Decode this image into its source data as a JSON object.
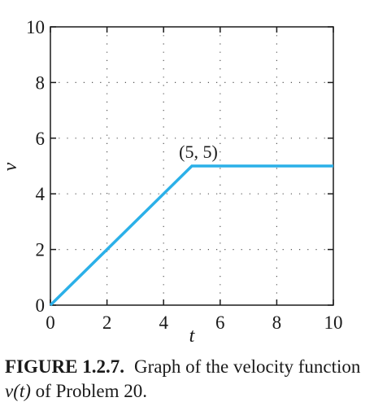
{
  "chart_data": {
    "type": "line",
    "xlabel": "t",
    "ylabel": "v",
    "xlim": [
      0,
      10
    ],
    "ylim": [
      0,
      10
    ],
    "xticks": [
      "0",
      "2",
      "4",
      "6",
      "8",
      "10"
    ],
    "yticks": [
      "0",
      "2",
      "4",
      "6",
      "8",
      "10"
    ],
    "grid": "dotted",
    "series": [
      {
        "x": [
          0,
          5,
          10
        ],
        "y": [
          0,
          5,
          5
        ],
        "color": "#2bb0e8"
      }
    ],
    "annotations": [
      {
        "text": "(5, 5)",
        "x": 5,
        "y": 5
      }
    ]
  },
  "caption": {
    "label": "FIGURE 1.2.7.",
    "text_before": "Graph of the velocity function ",
    "func": "v(t)",
    "text_after": " of Problem 20."
  }
}
